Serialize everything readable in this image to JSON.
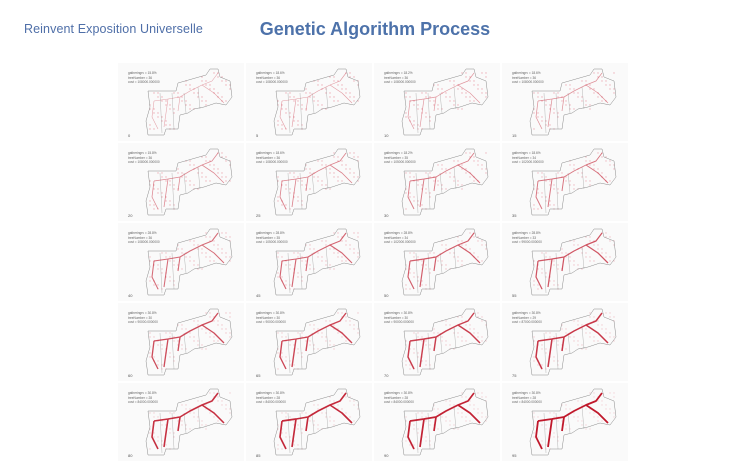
{
  "header": {
    "brand": "Reinvent Exposition Universelle",
    "title": "Genetic Algorithm Process"
  },
  "labels": {
    "fit_prefix": "gatheringrv = ",
    "tree_prefix": "treeNumber = ",
    "cost_prefix": "cost = "
  },
  "panels": [
    {
      "gen": "0",
      "fit": "15.8%",
      "trees": "36",
      "cost": "108000.000000",
      "level": 0.05
    },
    {
      "gen": "5",
      "fit": "18.6%",
      "trees": "36",
      "cost": "108000.000000",
      "level": 0.1
    },
    {
      "gen": "10",
      "fit": "18.2%",
      "trees": "36",
      "cost": "108000.000000",
      "level": 0.14
    },
    {
      "gen": "15",
      "fit": "18.6%",
      "trees": "36",
      "cost": "108000.000000",
      "level": 0.18
    },
    {
      "gen": "20",
      "fit": "15.8%",
      "trees": "36",
      "cost": "108000.000000",
      "level": 0.22
    },
    {
      "gen": "25",
      "fit": "18.6%",
      "trees": "36",
      "cost": "108000.000000",
      "level": 0.27
    },
    {
      "gen": "30",
      "fit": "18.2%",
      "trees": "35",
      "cost": "105000.000000",
      "level": 0.32
    },
    {
      "gen": "35",
      "fit": "18.6%",
      "trees": "34",
      "cost": "102000.000000",
      "level": 0.36
    },
    {
      "gen": "40",
      "fit": "28.8%",
      "trees": "36",
      "cost": "108000.000000",
      "level": 0.42
    },
    {
      "gen": "45",
      "fit": "28.8%",
      "trees": "35",
      "cost": "105000.000000",
      "level": 0.47
    },
    {
      "gen": "50",
      "fit": "28.8%",
      "trees": "34",
      "cost": "102000.000000",
      "level": 0.52
    },
    {
      "gen": "55",
      "fit": "28.8%",
      "trees": "33",
      "cost": "99000.000000",
      "level": 0.57
    },
    {
      "gen": "60",
      "fit": "30.8%",
      "trees": "30",
      "cost": "90000.000000",
      "level": 0.63
    },
    {
      "gen": "65",
      "fit": "30.8%",
      "trees": "30",
      "cost": "90000.000000",
      "level": 0.68
    },
    {
      "gen": "70",
      "fit": "30.8%",
      "trees": "30",
      "cost": "90000.000000",
      "level": 0.73
    },
    {
      "gen": "75",
      "fit": "30.8%",
      "trees": "29",
      "cost": "87000.000000",
      "level": 0.78
    },
    {
      "gen": "80",
      "fit": "30.8%",
      "trees": "28",
      "cost": "84000.000000",
      "level": 0.83
    },
    {
      "gen": "85",
      "fit": "30.8%",
      "trees": "28",
      "cost": "84000.000000",
      "level": 0.88
    },
    {
      "gen": "90",
      "fit": "30.8%",
      "trees": "28",
      "cost": "84000.000000",
      "level": 0.93
    },
    {
      "gen": "95",
      "fit": "30.8%",
      "trees": "28",
      "cost": "84000.000000",
      "level": 1.0
    }
  ],
  "colors": {
    "outline": "#8a8a8a",
    "path": "#c0182b",
    "dots": "#e26a7b",
    "grid": "#f3c7cf"
  }
}
